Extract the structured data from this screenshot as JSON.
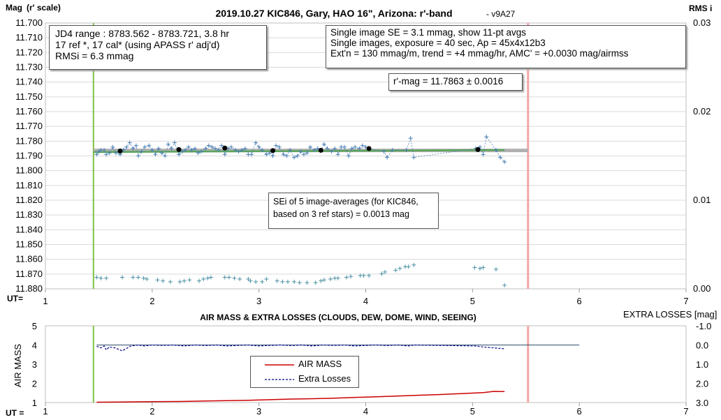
{
  "header": {
    "title": "2019.10.27 KIC846, Gary, HAO 16\", Arizona: r'-band",
    "version": "- v9A27",
    "left_axis_label": "Mag",
    "left_axis_sublabel": "(r' scale)",
    "right_axis_label": "RMS i",
    "ut_label_top": "UT=",
    "ut_label_bottom": "UT ="
  },
  "info_left": {
    "line1": "JD4 range : 8783.562 - 8783.721,  3.8  hr",
    "line2": "17 ref *, 17 cal* (using APASS r' adj'd)",
    "line3": "RMSi = 6.3 mmag"
  },
  "info_right": {
    "line1": "Single image SE = 3.1 mmag, show  11-pt avgs",
    "line2": "Single images, exposure = 40 sec, Ap = 45x4x12b3",
    "line3": "Ext'n = 130 mmag/m, trend =  +4 mmag/hr, AMC' = +0.0030 mag/airmss"
  },
  "rmag_box": {
    "text": "r'-mag = 11.7863 ± 0.0016"
  },
  "sei_box": {
    "line1": "SEi of 5 image-averages (for KIC846,",
    "line2": "based on 3 ref stars) = 0.0013 mag"
  },
  "bottom": {
    "title": "AIR MASS & EXTRA LOSSES (CLOUDS, DEW, DOME, WIND, SEEING)",
    "left_axis_label": "AIR MASS",
    "right_axis_label": "EXTRA LOSSES [mag]",
    "legend_air_mass": "AIR MASS",
    "legend_extra_losses": "Extra Losses"
  },
  "colors": {
    "mag_points": "#4a7fb5",
    "rms_points": "#4a90a4",
    "avg_points": "#000000",
    "mean_line": "#b0b0b0",
    "trend_line": "#5aa55a",
    "start_marker": "#7cc242",
    "end_marker": "#f2a6a6",
    "air_mass": "#cc0000",
    "extra_losses": "#00008b"
  },
  "chart_data": [
    {
      "type": "scatter",
      "title": "2019.10.27 KIC846, Gary, HAO 16\", Arizona: r'-band",
      "xlabel": "UT=",
      "ylabel": "Mag (r' scale)",
      "y2label": "RMS i",
      "xlim": [
        1,
        7
      ],
      "ylim": [
        11.88,
        11.7
      ],
      "y2lim": [
        0.0,
        0.03
      ],
      "x_ticks": [
        "1",
        "2",
        "3",
        "4",
        "5",
        "6",
        "7"
      ],
      "y_ticks": [
        "11.700",
        "11.710",
        "11.720",
        "11.730",
        "11.740",
        "11.750",
        "11.760",
        "11.770",
        "11.780",
        "11.790",
        "11.800",
        "11.810",
        "11.820",
        "11.830",
        "11.840",
        "11.850",
        "11.860",
        "11.870",
        "11.880"
      ],
      "y2_ticks": [
        "0.03",
        "0.02",
        "0.01",
        "0.00"
      ],
      "grid": "horizontal",
      "start_ut": 1.45,
      "end_ut": 5.52,
      "mean_mag": 11.7863,
      "trend": [
        [
          1.45,
          11.7874
        ],
        [
          5.3,
          11.786
        ]
      ],
      "averages": {
        "x": [
          1.7,
          2.25,
          2.68,
          3.13,
          3.58,
          4.03,
          5.05
        ],
        "y": [
          11.7867,
          11.7857,
          11.7847,
          11.7864,
          11.7862,
          11.785,
          11.7857
        ]
      },
      "series": [
        {
          "name": "mag",
          "x": [
            1.48,
            1.5,
            1.52,
            1.55,
            1.57,
            1.6,
            1.63,
            1.66,
            1.7,
            1.73,
            1.76,
            1.79,
            1.82,
            1.85,
            1.87,
            1.9,
            1.93,
            1.97,
            2.0,
            2.03,
            2.06,
            2.09,
            2.12,
            2.15,
            2.18,
            2.21,
            2.25,
            2.28,
            2.31,
            2.34,
            2.37,
            2.4,
            2.43,
            2.46,
            2.5,
            2.53,
            2.56,
            2.59,
            2.62,
            2.65,
            2.68,
            2.71,
            2.74,
            2.78,
            2.81,
            2.84,
            2.87,
            2.9,
            2.93,
            2.97,
            3.0,
            3.03,
            3.07,
            3.1,
            3.13,
            3.16,
            3.19,
            3.23,
            3.26,
            3.29,
            3.33,
            3.36,
            3.39,
            3.42,
            3.45,
            3.48,
            3.52,
            3.55,
            3.58,
            3.61,
            3.64,
            3.68,
            3.71,
            3.74,
            3.77,
            3.8,
            3.84,
            3.87,
            3.9,
            3.94,
            3.97,
            4.0,
            4.03,
            4.17,
            4.2,
            4.25,
            4.38,
            4.42,
            4.45,
            5.03,
            5.07,
            5.1,
            5.13,
            5.22,
            5.26,
            5.3
          ],
          "y": [
            11.789,
            11.787,
            11.786,
            11.786,
            11.789,
            11.788,
            11.784,
            11.788,
            11.789,
            11.786,
            11.784,
            11.781,
            11.785,
            11.783,
            11.79,
            11.787,
            11.784,
            11.783,
            11.786,
            11.789,
            11.785,
            11.788,
            11.79,
            11.782,
            11.785,
            11.781,
            11.789,
            11.787,
            11.786,
            11.784,
            11.786,
            11.785,
            11.788,
            11.787,
            11.785,
            11.783,
            11.784,
            11.785,
            11.786,
            11.783,
            11.789,
            11.785,
            11.784,
            11.786,
            11.787,
            11.786,
            11.785,
            11.789,
            11.789,
            11.781,
            11.784,
            11.786,
            11.789,
            11.788,
            11.79,
            11.783,
            11.784,
            11.789,
            11.79,
            11.786,
            11.791,
            11.79,
            11.787,
            11.789,
            11.788,
            11.784,
            11.786,
            11.785,
            11.786,
            11.782,
            11.785,
            11.787,
            11.785,
            11.789,
            11.784,
            11.784,
            11.79,
            11.785,
            11.784,
            11.785,
            11.783,
            11.784,
            11.785,
            11.787,
            11.791,
            11.786,
            11.786,
            11.778,
            11.791,
            11.785,
            11.784,
            11.789,
            11.777,
            11.786,
            11.791,
            11.794
          ]
        },
        {
          "name": "RMS i",
          "x": [
            1.48,
            1.52,
            1.57,
            1.72,
            1.82,
            1.87,
            1.92,
            1.95,
            2.05,
            2.1,
            2.17,
            2.26,
            2.3,
            2.35,
            2.44,
            2.48,
            2.52,
            2.55,
            2.68,
            2.72,
            2.77,
            2.82,
            2.9,
            2.92,
            2.97,
            3.03,
            3.07,
            3.17,
            3.22,
            3.27,
            3.33,
            3.38,
            3.45,
            3.53,
            3.58,
            3.61,
            3.67,
            3.71,
            3.74,
            3.82,
            3.86,
            3.95,
            3.98,
            4.03,
            4.15,
            4.18,
            4.28,
            4.32,
            4.37,
            4.4,
            4.45,
            5.02,
            5.07,
            5.1,
            5.22,
            5.3
          ],
          "y": [
            0.0013,
            0.0012,
            0.0012,
            0.0013,
            0.0013,
            0.0013,
            0.0012,
            0.0011,
            0.001,
            0.0009,
            0.0008,
            0.0008,
            0.0009,
            0.001,
            0.0009,
            0.0011,
            0.0012,
            0.0013,
            0.0013,
            0.0013,
            0.0012,
            0.0011,
            0.0011,
            0.0009,
            0.0008,
            0.0008,
            0.0011,
            0.0009,
            0.0008,
            0.0008,
            0.0008,
            0.0007,
            0.0007,
            0.0007,
            0.0009,
            0.001,
            0.0011,
            0.0012,
            0.0012,
            0.0013,
            0.0014,
            0.0015,
            0.0015,
            0.0015,
            0.0017,
            0.0019,
            0.0021,
            0.0023,
            0.0025,
            0.0025,
            0.0027,
            0.0024,
            0.0023,
            0.0024,
            0.0022,
            0.0004
          ]
        }
      ]
    },
    {
      "type": "line",
      "title": "AIR MASS & EXTRA LOSSES (CLOUDS, DEW, DOME, WIND, SEEING)",
      "xlabel": "UT =",
      "ylabel": "AIR MASS",
      "y2label": "EXTRA LOSSES [mag]",
      "xlim": [
        1,
        7
      ],
      "ylim": [
        1,
        5
      ],
      "y2lim": [
        3.0,
        -1.0
      ],
      "x_ticks": [
        "1",
        "2",
        "3",
        "4",
        "5",
        "6",
        "7"
      ],
      "y_ticks": [
        "5",
        "4",
        "3",
        "2",
        "1"
      ],
      "y2_ticks": [
        "-1.0",
        "0.0",
        "1.0",
        "2.0",
        "3.0"
      ],
      "reference_level_extra_losses": 0.0,
      "legend": "center",
      "series": [
        {
          "name": "AIR MASS",
          "x": [
            1.48,
            1.7,
            1.9,
            2.1,
            2.3,
            2.5,
            2.7,
            2.9,
            3.1,
            3.3,
            3.5,
            3.7,
            3.9,
            4.1,
            4.3,
            4.5,
            4.7,
            4.9,
            5.1,
            5.2,
            5.3
          ],
          "y": [
            1.02,
            1.03,
            1.04,
            1.05,
            1.06,
            1.08,
            1.1,
            1.12,
            1.15,
            1.18,
            1.2,
            1.23,
            1.27,
            1.3,
            1.34,
            1.38,
            1.42,
            1.47,
            1.52,
            1.58,
            1.57
          ]
        },
        {
          "name": "Extra Losses",
          "x": [
            1.48,
            1.52,
            1.55,
            1.57,
            1.6,
            1.65,
            1.72,
            1.8,
            1.87,
            1.93,
            2.0,
            2.1,
            2.2,
            2.3,
            2.4,
            2.5,
            2.6,
            2.7,
            2.8,
            2.9,
            3.0,
            3.1,
            3.2,
            3.3,
            3.4,
            3.5,
            3.6,
            3.7,
            3.8,
            3.9,
            4.0,
            4.1,
            4.2,
            4.3,
            4.4,
            4.45,
            5.02,
            5.1,
            5.2,
            5.3
          ],
          "y": [
            0.07,
            0.15,
            0.05,
            0.25,
            0.1,
            0.15,
            0.3,
            0.05,
            0.0,
            0.05,
            0.0,
            0.02,
            0.0,
            0.05,
            0.0,
            0.03,
            0.0,
            0.05,
            0.02,
            0.0,
            0.05,
            0.02,
            0.0,
            0.03,
            0.0,
            0.05,
            0.0,
            0.02,
            0.0,
            0.05,
            0.02,
            0.0,
            0.03,
            0.0,
            0.05,
            0.0,
            0.05,
            0.1,
            0.15,
            0.2
          ]
        }
      ]
    }
  ]
}
